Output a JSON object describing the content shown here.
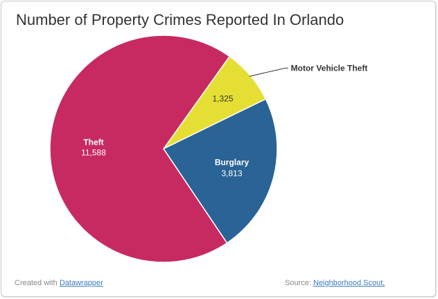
{
  "header": {
    "title": "Number of Property Crimes Reported In Orlando"
  },
  "footer": {
    "created_prefix": "Created with",
    "created_link": "Datawrapper",
    "source_prefix": "Source:",
    "source_link": "Neighborhood Scout,"
  },
  "colors": {
    "Theft": "#c72a61",
    "Motor Vehicle Theft": "#e5df35",
    "Burglary": "#2a6395"
  },
  "chart_data": {
    "type": "pie",
    "title": "Number of Property Crimes Reported In Orlando",
    "categories": [
      "Theft",
      "Motor Vehicle Theft",
      "Burglary"
    ],
    "values": [
      11588,
      1325,
      3813
    ],
    "value_labels": [
      "11,588",
      "1,325",
      "3,813"
    ],
    "legend": "none"
  }
}
